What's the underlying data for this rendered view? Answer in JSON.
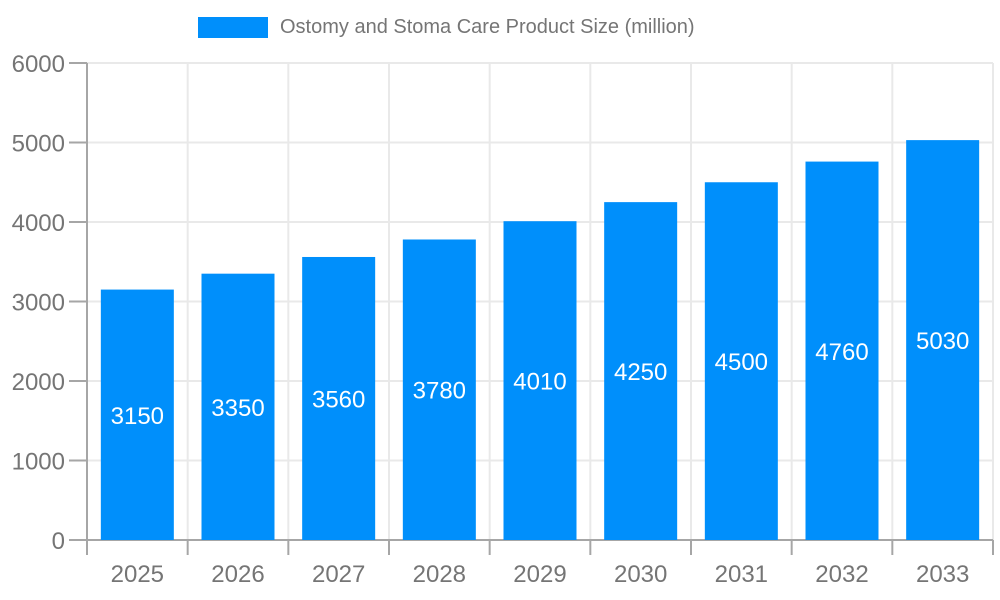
{
  "chart_data": {
    "type": "bar",
    "title": "Ostomy and Stoma Care Product Size (million)",
    "categories": [
      "2025",
      "2026",
      "2027",
      "2028",
      "2029",
      "2030",
      "2031",
      "2032",
      "2033"
    ],
    "values": [
      3150,
      3350,
      3560,
      3780,
      4010,
      4250,
      4500,
      4760,
      5030
    ],
    "xlabel": "",
    "ylabel": "",
    "ylim": [
      0,
      6000
    ],
    "yticks": [
      0,
      1000,
      2000,
      3000,
      4000,
      5000,
      6000
    ],
    "grid": true,
    "legend_position": "top",
    "bar_labels_inside": true,
    "colors": {
      "bar": "#008FFB",
      "bar_label": "#FFFFFF",
      "axis_text": "#757575",
      "grid_line": "#E9E9E9",
      "axis_line": "#A6A6A6"
    }
  }
}
